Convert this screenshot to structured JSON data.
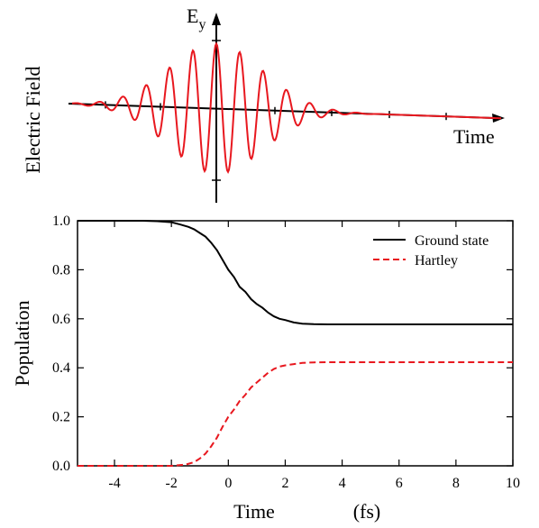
{
  "chart_data": [
    {
      "type": "line",
      "title": "",
      "ylabel": "Electric Field",
      "xlabel": "Time",
      "field_label_main": "E",
      "field_label_sub": "y",
      "series": [
        {
          "name": "",
          "description": "Few-cycle oscillating pulse with Gaussian envelope, peak at t=0",
          "color": "#e8181f"
        }
      ],
      "axis_color": "#000000"
    },
    {
      "type": "line",
      "title": "",
      "xlabel": "Time",
      "xunit": "(fs)",
      "ylabel": "Population",
      "xlim": [
        -5.3,
        10
      ],
      "ylim": [
        0,
        1.0
      ],
      "xticks": [
        -4,
        -2,
        0,
        2,
        4,
        6,
        8,
        10
      ],
      "xticklabels": [
        "-4",
        "-2",
        "0",
        "2",
        "4",
        "6",
        "8",
        "10"
      ],
      "yticks": [
        0.0,
        0.2,
        0.4,
        0.6,
        0.8,
        1.0
      ],
      "yticklabels": [
        "0.0",
        "0.2",
        "0.4",
        "0.6",
        "0.8",
        "1.0"
      ],
      "grid": false,
      "legend_position": "top-right",
      "series": [
        {
          "name": "Ground state",
          "color": "#000000",
          "style": "solid",
          "x": [
            -5.3,
            -3,
            -2.5,
            -2,
            -1.7,
            -1.4,
            -1.2,
            -1.0,
            -0.8,
            -0.6,
            -0.4,
            -0.2,
            0.0,
            0.2,
            0.4,
            0.6,
            0.8,
            1.0,
            1.2,
            1.4,
            1.6,
            1.8,
            2.0,
            2.3,
            2.6,
            3.0,
            3.5,
            4.0,
            6.0,
            8.0,
            10.0
          ],
          "values": [
            1.0,
            1.0,
            0.998,
            0.994,
            0.985,
            0.975,
            0.965,
            0.95,
            0.935,
            0.91,
            0.88,
            0.84,
            0.8,
            0.77,
            0.73,
            0.71,
            0.68,
            0.66,
            0.645,
            0.625,
            0.61,
            0.6,
            0.595,
            0.585,
            0.58,
            0.578,
            0.577,
            0.577,
            0.577,
            0.577,
            0.577
          ]
        },
        {
          "name": "Hartley",
          "color": "#e8181f",
          "style": "dashed",
          "x": [
            -5.3,
            -2.0,
            -1.5,
            -1.2,
            -1.0,
            -0.8,
            -0.6,
            -0.4,
            -0.2,
            0.0,
            0.2,
            0.4,
            0.6,
            0.8,
            1.0,
            1.2,
            1.4,
            1.6,
            1.8,
            2.0,
            2.3,
            2.6,
            3.0,
            3.5,
            4.0,
            6.0,
            8.0,
            10.0
          ],
          "values": [
            0.0,
            0.0,
            0.005,
            0.015,
            0.03,
            0.05,
            0.08,
            0.115,
            0.16,
            0.2,
            0.23,
            0.265,
            0.29,
            0.32,
            0.34,
            0.36,
            0.38,
            0.395,
            0.405,
            0.41,
            0.415,
            0.42,
            0.422,
            0.423,
            0.423,
            0.423,
            0.423,
            0.423
          ]
        }
      ]
    }
  ]
}
